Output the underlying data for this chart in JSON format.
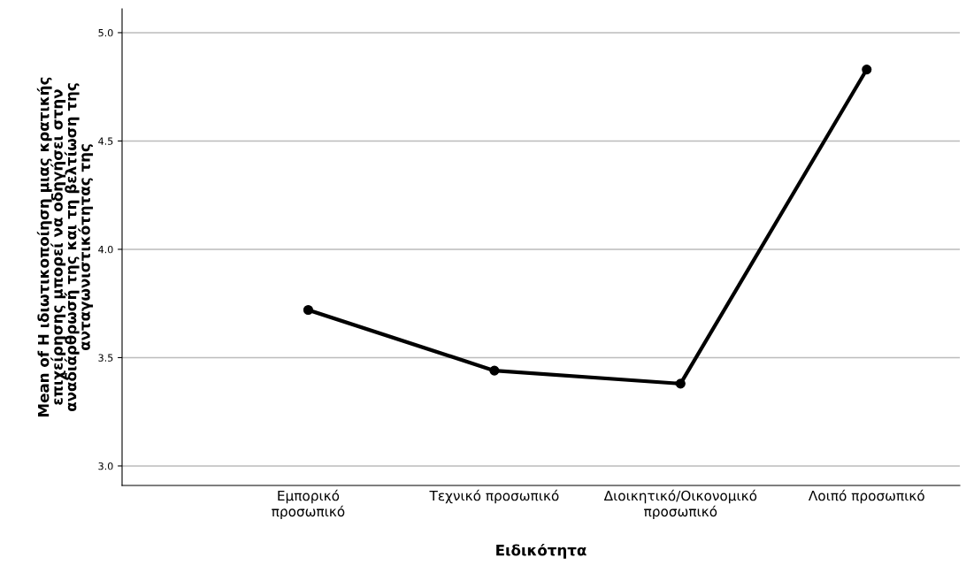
{
  "chart_data": {
    "type": "line",
    "xlabel": "Ειδικότητα",
    "ylabel": "Mean of Η ιδιωτικοποίηση μιας κρατικής\nεπιχείρησης μπορεί να οδηγήσει στην\nαναδιάρθρωσή της και τη βελτίωση της\nανταγωνιστικότητας της",
    "categories": [
      "Εμπορικό\nπροσωπικό",
      "Τεχνικό προσωπικό",
      "Διοικητικό/Οικονομικό\nπροσωπικό",
      "Λοιπό προσωπικό"
    ],
    "series": [
      {
        "color": "#000000",
        "values": [
          3.72,
          3.44,
          3.38,
          4.83
        ]
      }
    ],
    "ylim": [
      2.91,
      5.11
    ],
    "yticks": [
      {
        "value": 3.0,
        "label": "3.0"
      },
      {
        "value": 3.5,
        "label": "3.5"
      },
      {
        "value": 4.0,
        "label": "4.0"
      },
      {
        "value": 4.5,
        "label": "4.5"
      },
      {
        "value": 5.0,
        "label": "5.0"
      }
    ],
    "grid": "y",
    "marker": "circle",
    "line_style": "solid"
  }
}
